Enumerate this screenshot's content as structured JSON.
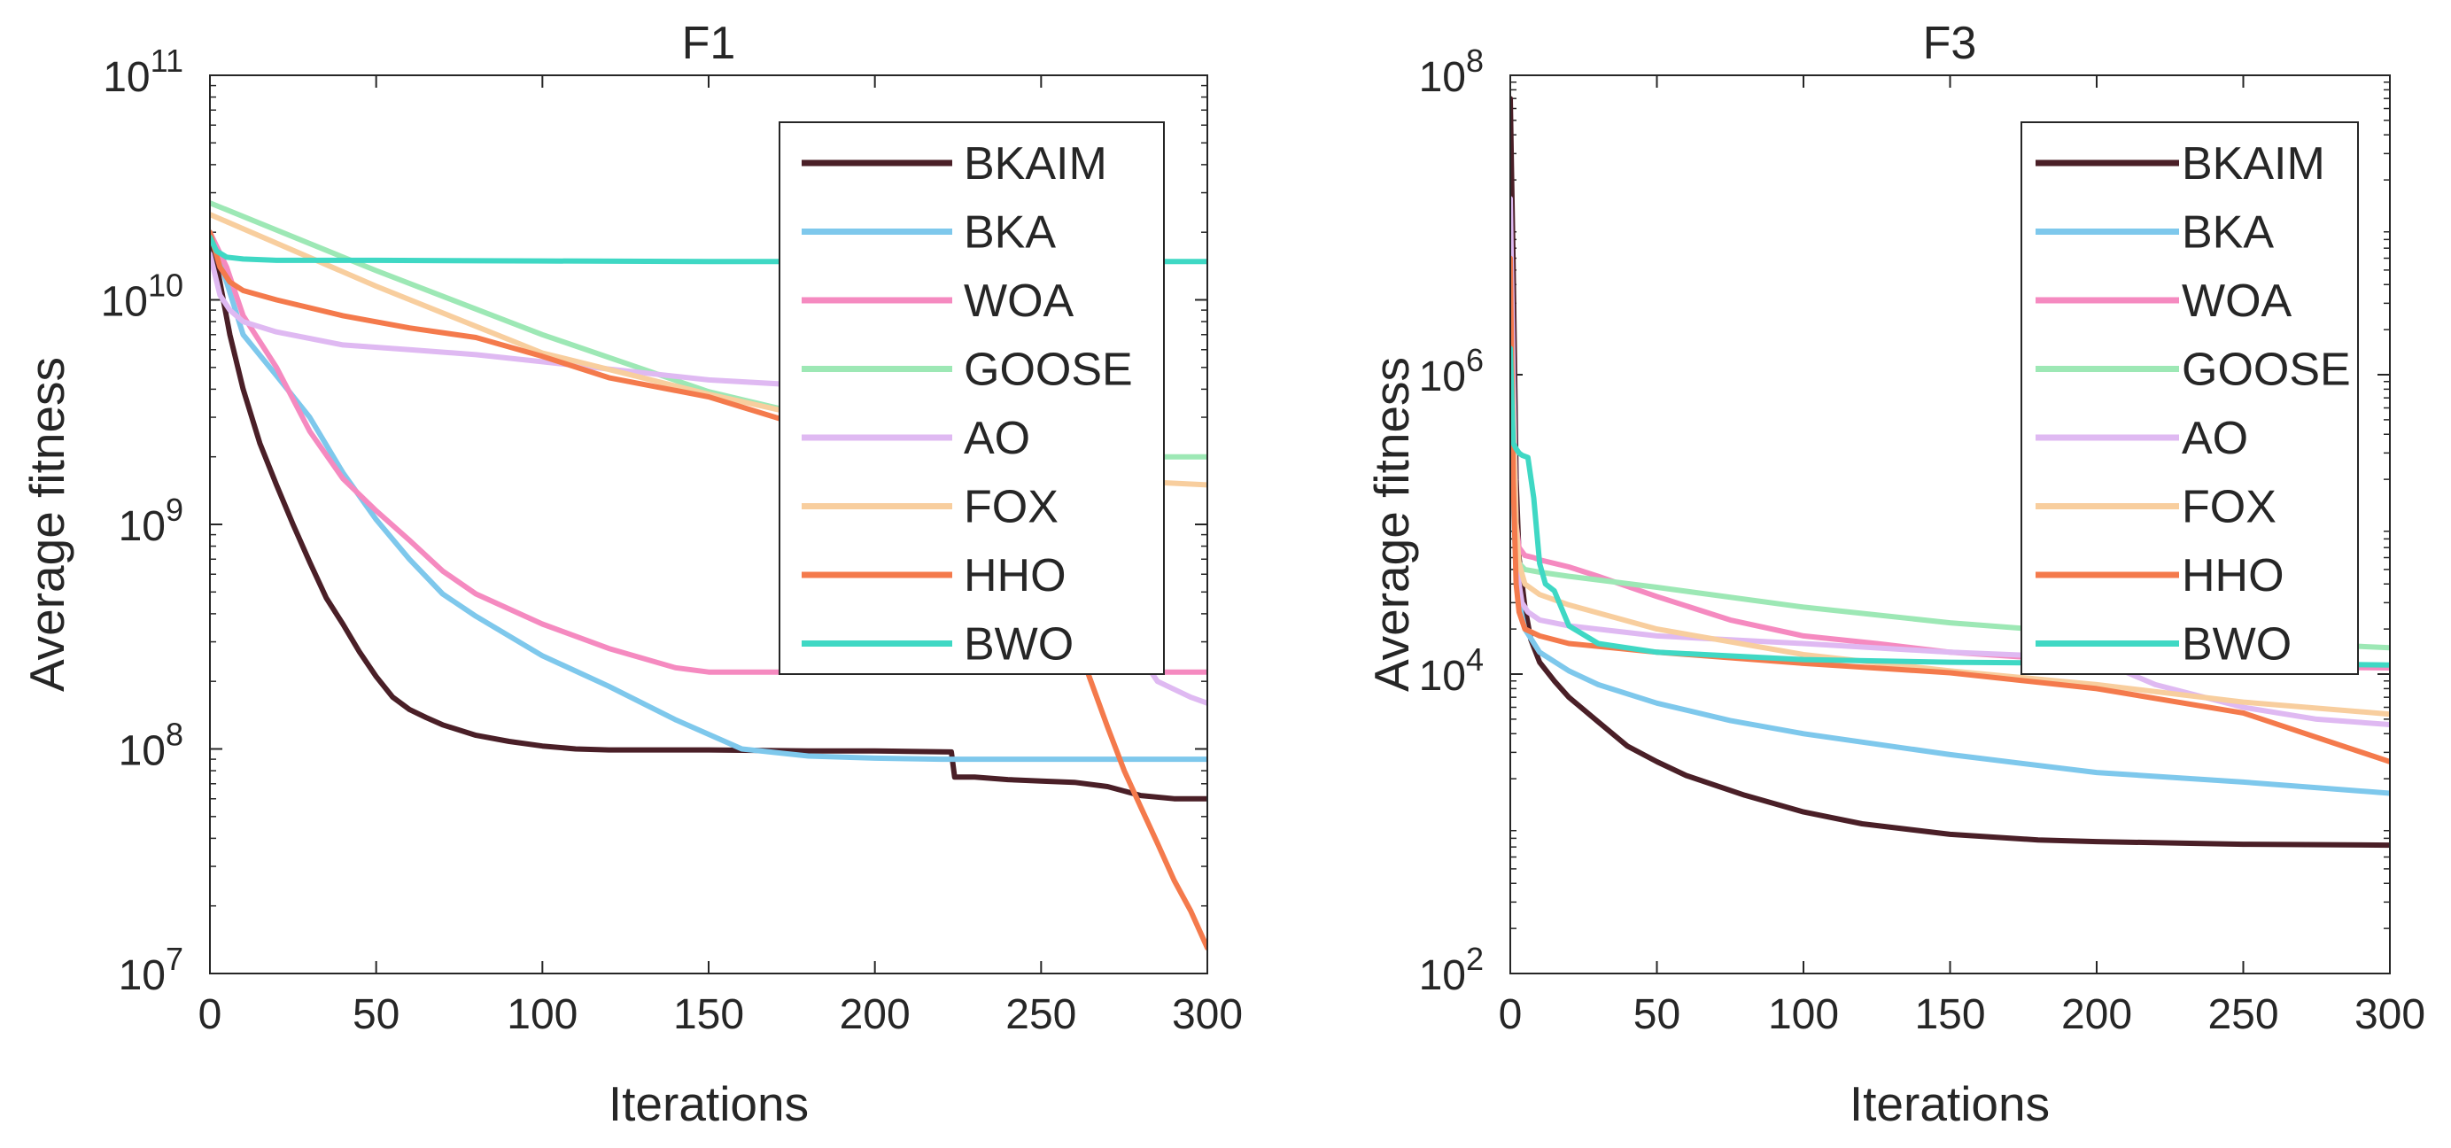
{
  "chart_data": [
    {
      "type": "line",
      "title": "F1",
      "xlabel": "Iterations",
      "ylabel": "Average fitness",
      "xlim": [
        0,
        300
      ],
      "ylim_log10": [
        7,
        11
      ],
      "yscale": "log",
      "xticks": [
        0,
        50,
        100,
        150,
        200,
        250,
        300
      ],
      "xtick_labels": [
        "0",
        "50",
        "100",
        "150",
        "200",
        "250",
        "300"
      ],
      "yticks_log10": [
        7,
        8,
        9,
        10,
        11
      ],
      "ytick_bases": [
        "10",
        "10",
        "10",
        "10",
        "10"
      ],
      "ytick_exponents": [
        "7",
        "8",
        "9",
        "10",
        "11"
      ],
      "legend_position": "top-right",
      "series": [
        {
          "name": "BKAIM",
          "color": "#4a1f27",
          "x": [
            0,
            3,
            6,
            10,
            15,
            20,
            25,
            30,
            35,
            40,
            45,
            50,
            55,
            60,
            65,
            70,
            80,
            90,
            100,
            110,
            120,
            150,
            180,
            200,
            223,
            224,
            230,
            240,
            250,
            260,
            270,
            280,
            290,
            300
          ],
          "y": [
            20000000000.0,
            12000000000.0,
            7000000000.0,
            4000000000.0,
            2300000000.0,
            1500000000.0,
            1000000000.0,
            680000000.0,
            470000000.0,
            360000000.0,
            270000000.0,
            210000000.0,
            170000000.0,
            150000000.0,
            138000000.0,
            128000000.0,
            115000000.0,
            108000000.0,
            103000000.0,
            100000000.0,
            99000000.0,
            99000000.0,
            98000000.0,
            98000000.0,
            97000000.0,
            75000000.0,
            75000000.0,
            73000000.0,
            72000000.0,
            71000000.0,
            68000000.0,
            62000000.0,
            60000000.0,
            60000000.0
          ]
        },
        {
          "name": "BKA",
          "color": "#7ec8ec",
          "x": [
            0,
            5,
            10,
            20,
            30,
            40,
            50,
            60,
            70,
            80,
            100,
            120,
            140,
            160,
            180,
            200,
            220,
            250,
            300
          ],
          "y": [
            20000000000.0,
            12000000000.0,
            7000000000.0,
            4600000000.0,
            3000000000.0,
            1700000000.0,
            1050000000.0,
            700000000.0,
            490000000.0,
            390000000.0,
            260000000.0,
            190000000.0,
            135000000.0,
            100000000.0,
            93000000.0,
            91000000.0,
            90000000.0,
            90000000.0,
            90000000.0
          ]
        },
        {
          "name": "WOA",
          "color": "#f58ac0",
          "x": [
            0,
            5,
            10,
            20,
            30,
            40,
            50,
            60,
            70,
            80,
            90,
            100,
            120,
            140,
            150,
            160,
            200,
            250,
            300
          ],
          "y": [
            20000000000.0,
            14000000000.0,
            8500000000.0,
            5000000000.0,
            2600000000.0,
            1600000000.0,
            1150000000.0,
            850000000.0,
            620000000.0,
            490000000.0,
            420000000.0,
            360000000.0,
            280000000.0,
            230000000.0,
            220000000.0,
            220000000.0,
            220000000.0,
            220000000.0,
            220000000.0
          ]
        },
        {
          "name": "GOOSE",
          "color": "#9de8b5",
          "x": [
            0,
            50,
            100,
            150,
            200,
            250,
            280,
            300
          ],
          "y": [
            27000000000.0,
            13500000000.0,
            7000000000.0,
            3900000000.0,
            2600000000.0,
            2100000000.0,
            2000000000.0,
            2000000000.0
          ]
        },
        {
          "name": "AO",
          "color": "#dfb9f2",
          "x": [
            0,
            3,
            6,
            10,
            20,
            40,
            60,
            80,
            100,
            150,
            200,
            250,
            275,
            285,
            295,
            300
          ],
          "y": [
            16000000000.0,
            10500000000.0,
            9000000000.0,
            8000000000.0,
            7200000000.0,
            6300000000.0,
            6000000000.0,
            5700000000.0,
            5300000000.0,
            4400000000.0,
            4000000000.0,
            3600000000.0,
            330000000.0,
            200000000.0,
            170000000.0,
            160000000.0
          ]
        },
        {
          "name": "FOX",
          "color": "#f8ce9e",
          "x": [
            0,
            50,
            100,
            150,
            200,
            250,
            280,
            300
          ],
          "y": [
            24000000000.0,
            11500000000.0,
            5800000000.0,
            3800000000.0,
            2600000000.0,
            1900000000.0,
            1550000000.0,
            1500000000.0
          ]
        },
        {
          "name": "HHO",
          "color": "#f47a4c",
          "x": [
            0,
            3,
            6,
            10,
            20,
            40,
            60,
            80,
            100,
            120,
            150,
            180,
            200,
            220,
            240,
            250,
            255,
            260,
            265,
            270,
            275,
            280,
            285,
            290,
            295,
            300
          ],
          "y": [
            20000000000.0,
            14000000000.0,
            12000000000.0,
            11000000000.0,
            10000000000.0,
            8500000000.0,
            7500000000.0,
            6800000000.0,
            5600000000.0,
            4500000000.0,
            3700000000.0,
            2700000000.0,
            2100000000.0,
            1600000000.0,
            1200000000.0,
            750000000.0,
            480000000.0,
            320000000.0,
            200000000.0,
            125000000.0,
            80000000.0,
            55000000.0,
            38000000.0,
            26000000.0,
            19000000.0,
            13000000.0
          ]
        },
        {
          "name": "BWO",
          "color": "#3fd8c4",
          "x": [
            0,
            2,
            5,
            10,
            20,
            50,
            100,
            150,
            200,
            250,
            300
          ],
          "y": [
            19000000000.0,
            16500000000.0,
            15500000000.0,
            15200000000.0,
            15000000000.0,
            15000000000.0,
            14900000000.0,
            14800000000.0,
            14800000000.0,
            14800000000.0,
            14800000000.0
          ]
        }
      ]
    },
    {
      "type": "line",
      "title": "F3",
      "xlabel": "Iterations",
      "ylabel": "Average fitness",
      "xlim": [
        0,
        300
      ],
      "ylim_log10": [
        2,
        8
      ],
      "yscale": "log",
      "xticks": [
        0,
        50,
        100,
        150,
        200,
        250,
        300
      ],
      "xtick_labels": [
        "0",
        "50",
        "100",
        "150",
        "200",
        "250",
        "300"
      ],
      "yticks_log10": [
        2,
        4,
        6,
        8
      ],
      "ytick_bases": [
        "10",
        "10",
        "10",
        "10"
      ],
      "ytick_exponents": [
        "2",
        "4",
        "6",
        "8"
      ],
      "legend_position": "top-right",
      "series": [
        {
          "name": "BKAIM",
          "color": "#4a1f27",
          "x": [
            0,
            1,
            2,
            3,
            5,
            7,
            10,
            15,
            20,
            30,
            40,
            50,
            60,
            80,
            100,
            120,
            150,
            180,
            200,
            250,
            300
          ],
          "y": [
            70000000.0,
            5000000.0,
            200000.0,
            60000.0,
            28000.0,
            17000.0,
            12000.0,
            9000.0,
            7000.0,
            4800.0,
            3300.0,
            2600.0,
            2100.0,
            1550.0,
            1200.0,
            1000.0,
            850.0,
            780.0,
            760.0,
            730.0,
            720.0
          ]
        },
        {
          "name": "BKA",
          "color": "#7ec8ec",
          "x": [
            0,
            1,
            2,
            3,
            5,
            10,
            20,
            30,
            50,
            75,
            100,
            150,
            200,
            250,
            300
          ],
          "y": [
            1000000.0,
            150000.0,
            50000.0,
            30000.0,
            20000.0,
            14000.0,
            10500.0,
            8500.0,
            6400.0,
            4900.0,
            4000.0,
            2900.0,
            2200.0,
            1900.0,
            1600.0
          ]
        },
        {
          "name": "WOA",
          "color": "#f58ac0",
          "x": [
            0,
            1,
            2,
            3,
            5,
            8,
            10,
            20,
            30,
            50,
            75,
            100,
            125,
            150,
            175,
            200,
            225,
            250,
            300
          ],
          "y": [
            1200000.0,
            300000.0,
            100000.0,
            70000.0,
            62000.0,
            60000.0,
            58000.0,
            52000.0,
            45000.0,
            33000.0,
            23000.0,
            18000.0,
            16000.0,
            14000.0,
            13000.0,
            12000.0,
            11500.0,
            11200.0,
            11000.0
          ]
        },
        {
          "name": "GOOSE",
          "color": "#9de8b5",
          "x": [
            0,
            1,
            2,
            3,
            5,
            10,
            20,
            50,
            100,
            150,
            200,
            250,
            300
          ],
          "y": [
            1000000.0,
            200000.0,
            70000.0,
            55000.0,
            50000.0,
            48000.0,
            45000.0,
            38000.0,
            28000.0,
            22000.0,
            18500.0,
            16500.0,
            15000.0
          ]
        },
        {
          "name": "AO",
          "color": "#dfb9f2",
          "x": [
            0,
            1,
            2,
            3,
            4,
            6,
            10,
            20,
            50,
            100,
            150,
            190,
            200,
            220,
            250,
            275,
            300
          ],
          "y": [
            15000000.0,
            1000000.0,
            100000.0,
            40000.0,
            30000.0,
            26000.0,
            23000.0,
            21000.0,
            18000.0,
            16000.0,
            14000.0,
            13000.0,
            12500.0,
            8500.0,
            6000.0,
            5000.0,
            4600.0
          ]
        },
        {
          "name": "FOX",
          "color": "#f8ce9e",
          "x": [
            0,
            1,
            2,
            3,
            5,
            10,
            20,
            50,
            100,
            150,
            200,
            250,
            300
          ],
          "y": [
            3000000.0,
            500000.0,
            100000.0,
            55000.0,
            40000.0,
            34000.0,
            29000.0,
            20000.0,
            13500.0,
            10500.0,
            8500.0,
            6500.0,
            5400.0
          ]
        },
        {
          "name": "HHO",
          "color": "#f47a4c",
          "x": [
            0,
            1,
            2,
            3,
            5,
            10,
            20,
            50,
            100,
            150,
            200,
            250,
            300
          ],
          "y": [
            6000000.0,
            200000.0,
            40000.0,
            26000.0,
            20000.0,
            18000.0,
            16000.0,
            14000.0,
            11800.0,
            10200.0,
            8000.0,
            5500.0,
            2600.0
          ]
        },
        {
          "name": "BWO",
          "color": "#3fd8c4",
          "x": [
            0,
            1,
            2,
            3,
            4,
            6,
            8,
            10,
            12,
            15,
            20,
            30,
            50,
            100,
            150,
            200,
            250,
            300
          ],
          "y": [
            1500000.0,
            350000.0,
            320000.0,
            300000.0,
            290000.0,
            280000.0,
            150000.0,
            55000.0,
            40000.0,
            36000.0,
            21000.0,
            16000.0,
            14000.0,
            12500.0,
            12000.0,
            11800.0,
            11800.0,
            11500.0
          ]
        }
      ]
    }
  ]
}
